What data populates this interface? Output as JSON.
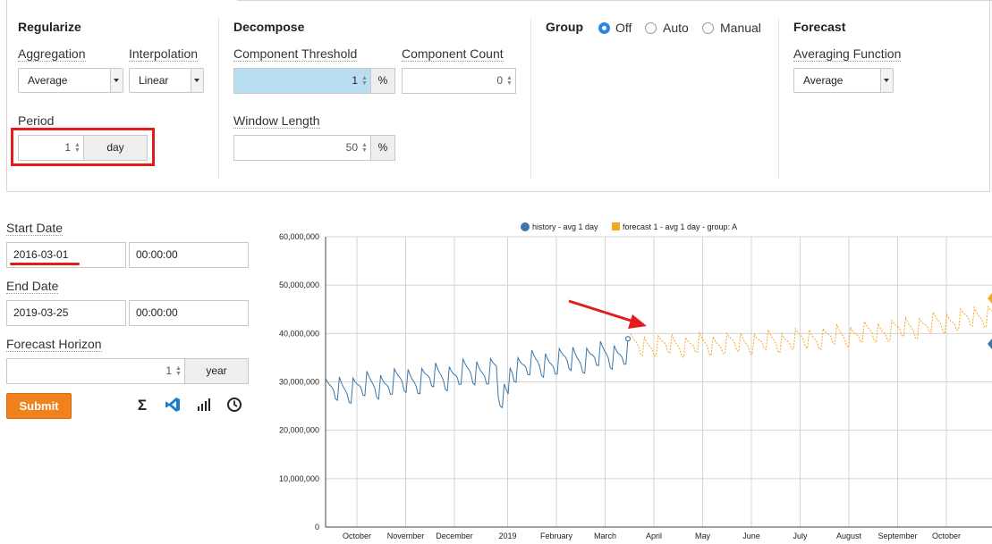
{
  "regularize": {
    "title": "Regularize",
    "aggregation_label": "Aggregation",
    "aggregation_value": "Average",
    "interpolation_label": "Interpolation",
    "interpolation_value": "Linear",
    "period_label": "Period",
    "period_value": "1",
    "period_unit": "day"
  },
  "decompose": {
    "title": "Decompose",
    "component_threshold_label": "Component Threshold",
    "component_threshold_value": "1",
    "component_threshold_unit": "%",
    "component_count_label": "Component Count",
    "component_count_value": "0",
    "window_length_label": "Window Length",
    "window_length_value": "50",
    "window_length_unit": "%"
  },
  "group": {
    "title": "Group",
    "options": [
      {
        "label": "Off",
        "selected": true
      },
      {
        "label": "Auto",
        "selected": false
      },
      {
        "label": "Manual",
        "selected": false
      }
    ]
  },
  "forecast": {
    "title": "Forecast",
    "averaging_label": "Averaging Function",
    "averaging_value": "Average"
  },
  "form": {
    "start_date_label": "Start Date",
    "start_date": "2016-03-01",
    "start_time": "00:00:00",
    "end_date_label": "End Date",
    "end_date": "2019-03-25",
    "end_time": "00:00:00",
    "horizon_label": "Forecast Horizon",
    "horizon_value": "1",
    "horizon_unit": "year",
    "submit_label": "Submit"
  },
  "toolbar": {
    "icons": [
      "sigma-icon",
      "vscode-icon",
      "bar-chart-icon",
      "clock-icon"
    ]
  },
  "colors": {
    "history": "#3a76a8",
    "forecast": "#f5a623",
    "accent": "#f0821e",
    "annotation": "#e41b1b"
  },
  "chart_data": {
    "type": "line",
    "title": "",
    "xlabel": "",
    "ylabel": "",
    "ylim": [
      0,
      60000000
    ],
    "y_ticks": [
      "0",
      "10,000,000",
      "20,000,000",
      "30,000,000",
      "40,000,000",
      "50,000,000",
      "60,000,000"
    ],
    "x_ticks": [
      "October",
      "November",
      "December",
      "2019",
      "February",
      "March",
      "April",
      "May",
      "June",
      "July",
      "August",
      "September",
      "October"
    ],
    "grid": true,
    "legend_position": "top-center",
    "series": [
      {
        "name": "history - avg 1 day",
        "style": "solid",
        "x_range": [
          "2018-09-01",
          "2019-03-25"
        ],
        "level_start": 28000000,
        "level_end": 36000000,
        "weekly_amplitude": 2500000
      },
      {
        "name": "forecast 1 - avg 1 day - group: A",
        "style": "dashed",
        "x_range": [
          "2019-03-26",
          "2019-10-31"
        ],
        "level_start": 37500000,
        "level_end": 44000000,
        "weekly_amplitude": 2000000
      }
    ]
  }
}
